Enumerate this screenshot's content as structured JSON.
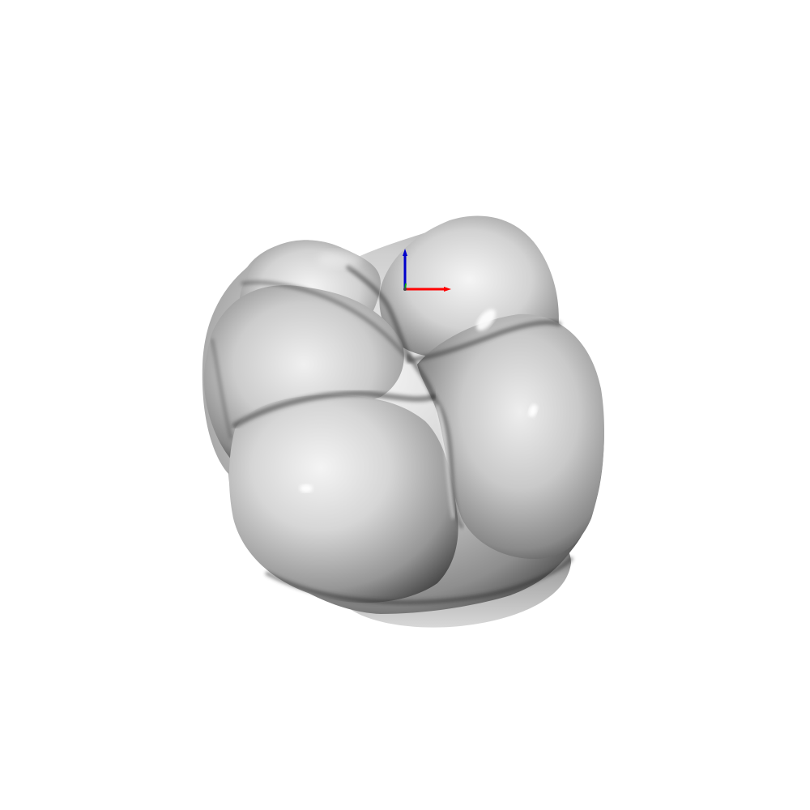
{
  "viewer": {
    "background": "#ffffff",
    "model": {
      "name": "tooth-crown",
      "base_color": "#b8b8b8"
    },
    "axes": {
      "x_color": "#ff0000",
      "y_color": "#00aa00",
      "z_color": "#0000cc"
    }
  }
}
